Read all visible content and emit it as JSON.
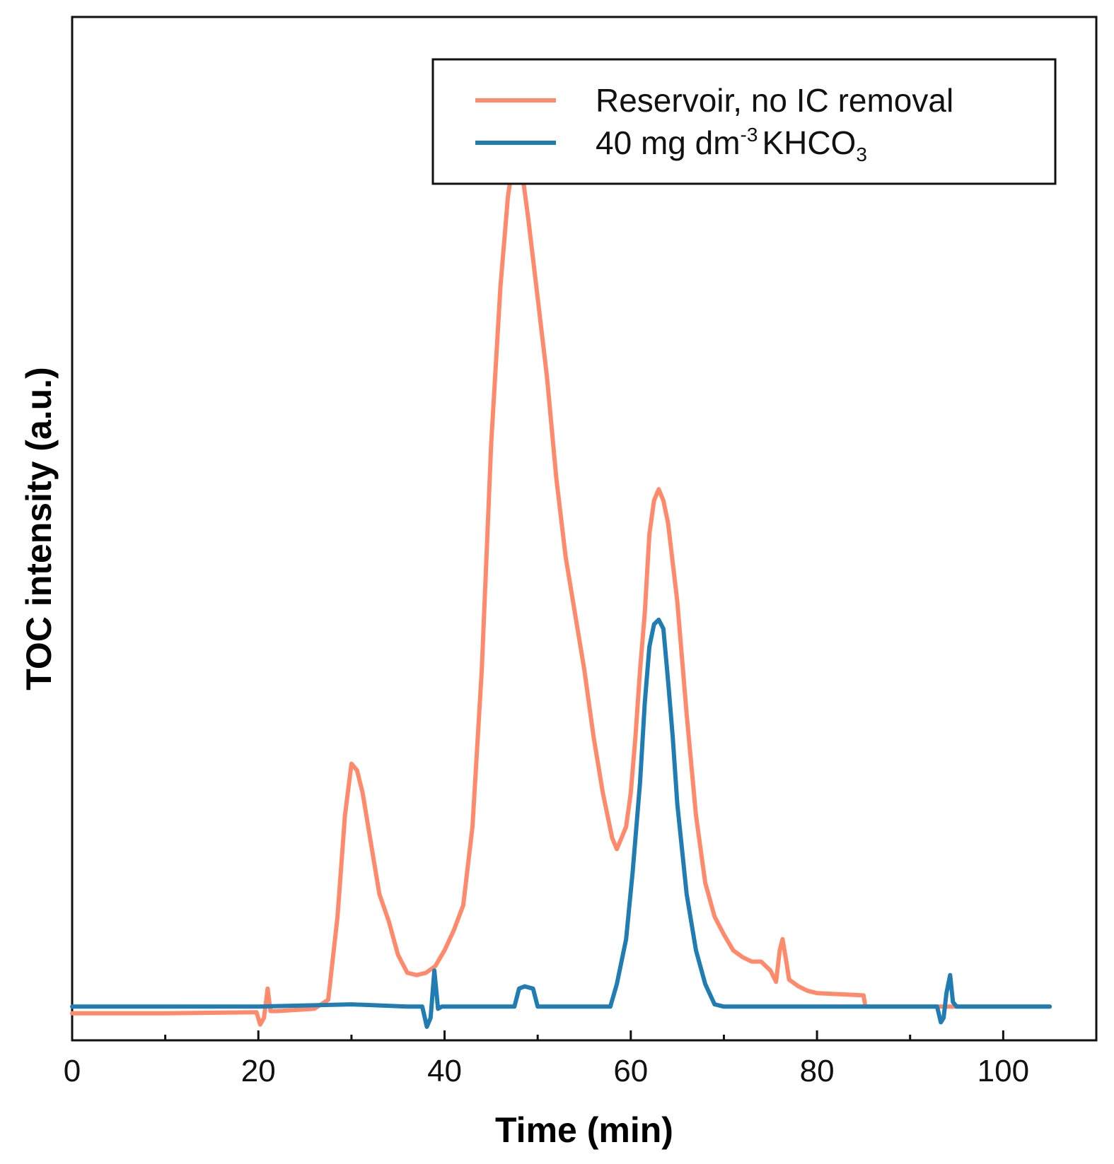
{
  "chart_data": {
    "type": "line",
    "title": "",
    "xlabel": "Time (min)",
    "ylabel": "TOC intensity (a.u.)",
    "xlim": [
      0,
      110
    ],
    "ylim": [
      -1.5,
      44
    ],
    "xticks": [
      0,
      20,
      40,
      60,
      80,
      100
    ],
    "xticks_minor": [
      10,
      30,
      50,
      70,
      90
    ],
    "yticks_visible": false,
    "grid": false,
    "legend": {
      "placement": "top-right",
      "entries": [
        {
          "label": "Reservoir, no IC removal",
          "color": "#FF8A6B"
        },
        {
          "label_main": "40 mg dm",
          "label_sup": "-3",
          "label_chem": "KHCO",
          "label_sub": "3",
          "color": "#1F7DB3"
        }
      ]
    },
    "series": [
      {
        "name": "Reservoir, no IC removal",
        "color": "#FF8A6B",
        "x": [
          0,
          10,
          19.8,
          20.2,
          20.6,
          21.0,
          21.3,
          21.7,
          22,
          26,
          27.5,
          28.5,
          29.3,
          30.0,
          30.6,
          31.2,
          32,
          33,
          34,
          35,
          36,
          37,
          38,
          39,
          40,
          41,
          42,
          43,
          44,
          45,
          46,
          46.8,
          47.5,
          48.2,
          49,
          50,
          51,
          52,
          53,
          54,
          55,
          56,
          57,
          58,
          58.5,
          59,
          59.5,
          60,
          60.5,
          61,
          61.5,
          62,
          62.5,
          63,
          63.5,
          64,
          65,
          66,
          67,
          68,
          69,
          70,
          71,
          72,
          73,
          74,
          75,
          75.6,
          76.0,
          76.3,
          76.7,
          77,
          78,
          79,
          80,
          85,
          85.2,
          90,
          95,
          100,
          105
        ],
        "values": [
          -0.3,
          -0.3,
          -0.25,
          -0.8,
          -0.5,
          0.8,
          -0.2,
          -0.2,
          -0.2,
          -0.1,
          0.3,
          4.0,
          8.5,
          10.8,
          10.5,
          9.5,
          7.5,
          5.0,
          3.8,
          2.3,
          1.5,
          1.4,
          1.5,
          1.8,
          2.5,
          3.4,
          4.5,
          8.0,
          15.0,
          25.0,
          32.0,
          36.0,
          38.0,
          37.5,
          35.0,
          31.5,
          28.0,
          23.5,
          20.0,
          17.5,
          15.0,
          12.0,
          9.5,
          7.5,
          7.0,
          7.5,
          8.0,
          9.5,
          12.0,
          15.0,
          17.5,
          21.0,
          22.5,
          23.0,
          22.5,
          21.5,
          18.0,
          13.0,
          8.5,
          5.5,
          4.0,
          3.2,
          2.5,
          2.2,
          2.0,
          2.0,
          1.6,
          1.1,
          2.5,
          3.0,
          2.0,
          1.2,
          0.9,
          0.7,
          0.6,
          0.5,
          0.0,
          0.0,
          0.0,
          0.0,
          0.0
        ]
      },
      {
        "name": "40 mg dm-3 KHCO3",
        "color": "#1F7DB3",
        "x": [
          0,
          10,
          20,
          30,
          36,
          37.6,
          38.1,
          38.5,
          38.9,
          39.3,
          39.7,
          40,
          45,
          47.5,
          48,
          48.6,
          49.5,
          50,
          51,
          56,
          57.8,
          58.5,
          59.5,
          60.2,
          61,
          61.5,
          62,
          62.5,
          63,
          63.5,
          64,
          64.5,
          65,
          66,
          67,
          68,
          69,
          70,
          80,
          85,
          90,
          92.9,
          93.3,
          93.6,
          93.9,
          94.3,
          94.6,
          95,
          100,
          105
        ],
        "values": [
          0,
          0,
          0,
          0.1,
          0,
          0,
          -0.9,
          -0.5,
          1.6,
          -0.1,
          0,
          0,
          0,
          0,
          0.8,
          0.9,
          0.8,
          0,
          0,
          0,
          0,
          1.0,
          3.0,
          6.0,
          10.0,
          13.5,
          16.0,
          17.0,
          17.2,
          16.8,
          14.5,
          12.0,
          9.0,
          5.0,
          2.5,
          1.0,
          0.1,
          0,
          0,
          0,
          0,
          0,
          -0.7,
          -0.5,
          0.6,
          1.4,
          0.2,
          0,
          0,
          0
        ]
      }
    ]
  }
}
